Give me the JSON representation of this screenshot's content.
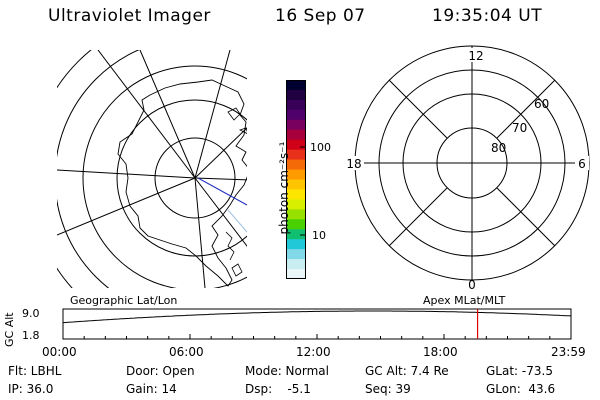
{
  "header": {
    "instrument": "Ultraviolet Imager",
    "date": "16 Sep 07",
    "time": "19:35:04 UT"
  },
  "left_map": {
    "caption": "Geographic Lat/Lon"
  },
  "right_map": {
    "caption": "Apex  MLat/MLT",
    "mlt_labels": {
      "top": "12",
      "bottom": "0",
      "left": "18",
      "right": "6"
    },
    "lat_labels": [
      "60",
      "70",
      "80"
    ]
  },
  "colorbar": {
    "unit_label": "photon cm⁻²s⁻¹",
    "tick_100": "100",
    "tick_10": "10",
    "colors": [
      "#000030",
      "#200040",
      "#380058",
      "#50006a",
      "#7a0060",
      "#a8003a",
      "#d00018",
      "#e8301a",
      "#f46a08",
      "#ff9a00",
      "#ffc400",
      "#ffe600",
      "#d8f000",
      "#98e000",
      "#48d000",
      "#10c070",
      "#20c8d8",
      "#80d8e8",
      "#c8eef2",
      "#eaf6f8"
    ]
  },
  "orbit_plot": {
    "ylabel": "GC Alt",
    "ytick_top": "9.0",
    "ytick_bottom": "1.8",
    "xticks": [
      "00:00",
      "06:00",
      "12:00",
      "18:00",
      "23:59"
    ],
    "current_time_fraction": 0.8161,
    "current_marker_color": "#e00000"
  },
  "info": {
    "filter": "Flt: LBHL",
    "ip": "IP: 36.0",
    "door": "Door: Open",
    "gain": "Gain: 14",
    "mode": "Mode: Normal",
    "dsp": "Dsp:    -5.1",
    "gc_alt": "GC Alt: 7.4 Re",
    "seq": "Seq: 39",
    "glat": "GLat: -73.5",
    "glon": "GLon:  43.6"
  }
}
